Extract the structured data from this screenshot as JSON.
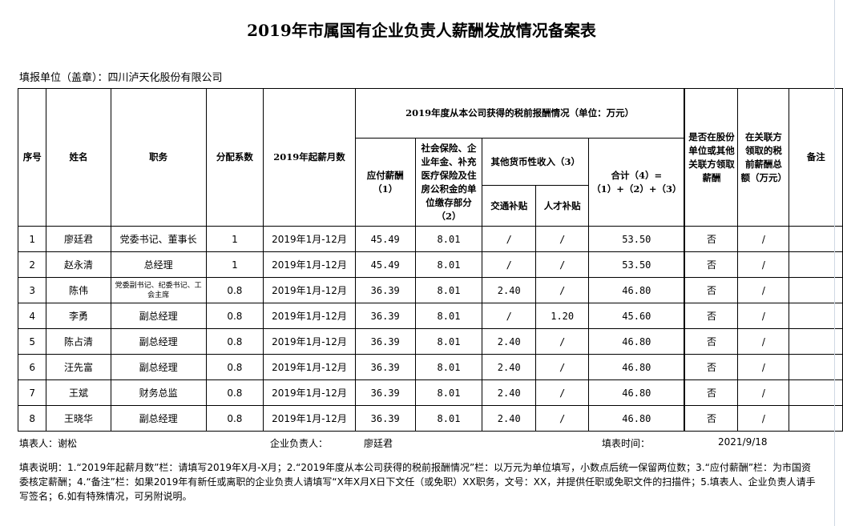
{
  "title": "2019年市属国有企业负责人薪酬发放情况备案表",
  "unit_label": "填报单位（盖章）：四川泸天化股份有限公司",
  "headers": {
    "seq": "序号",
    "name": "姓名",
    "position": "职务",
    "coef": "分配系数",
    "months": "2019年起薪月数",
    "group": "2019年度从本公司获得的税前报酬情况（单位：万元）",
    "salary": "应付薪酬（1）",
    "insurance": "社会保险、企业年金、补充医疗保险及住房公积金的单位缴存部分（2）",
    "other": "其他货币性收入（3）",
    "transport": "交通补贴",
    "talent": "人才补贴",
    "total": "合计（4）=（1）+（2）+（3）",
    "related": "是否在股份单位或其他关联方领取薪酬",
    "related_amount": "在关联方领取的税前薪酬总额（万元）",
    "remark": "备注"
  },
  "rows": [
    [
      "1",
      "廖廷君",
      "党委书记、董事长",
      "1",
      "2019年1月-12月",
      "45.49",
      "8.01",
      "/",
      "/",
      "53.50",
      "否",
      "/",
      ""
    ],
    [
      "2",
      "赵永清",
      "总经理",
      "1",
      "2019年1月-12月",
      "45.49",
      "8.01",
      "/",
      "/",
      "53.50",
      "否",
      "/",
      ""
    ],
    [
      "3",
      "陈伟",
      "党委副书记、纪委书记、工会主席",
      "0.8",
      "2019年1月-12月",
      "36.39",
      "8.01",
      "2.40",
      "/",
      "46.80",
      "否",
      "/",
      ""
    ],
    [
      "4",
      "李勇",
      "副总经理",
      "0.8",
      "2019年1月-12月",
      "36.39",
      "8.01",
      "/",
      "1.20",
      "45.60",
      "否",
      "/",
      ""
    ],
    [
      "5",
      "陈占清",
      "副总经理",
      "0.8",
      "2019年1月-12月",
      "36.39",
      "8.01",
      "2.40",
      "/",
      "46.80",
      "否",
      "/",
      ""
    ],
    [
      "6",
      "汪先富",
      "副总经理",
      "0.8",
      "2019年1月-12月",
      "36.39",
      "8.01",
      "2.40",
      "/",
      "46.80",
      "否",
      "/",
      ""
    ],
    [
      "7",
      "王斌",
      "财务总监",
      "0.8",
      "2019年1月-12月",
      "36.39",
      "8.01",
      "2.40",
      "/",
      "46.80",
      "否",
      "/",
      ""
    ],
    [
      "8",
      "王晓华",
      "副总经理",
      "0.8",
      "2019年1月-12月",
      "36.39",
      "8.01",
      "2.40",
      "/",
      "46.80",
      "否",
      "/",
      ""
    ]
  ],
  "footer": {
    "filler": "填表人：谢松",
    "leader_label": "企业负责人：",
    "leader": "廖廷君",
    "date_label": "填表时间：",
    "date": "2021/9/18"
  },
  "notes": "填表说明：1.“2019年起薪月数”栏：请填写2019年X月-X月；2.“2019年度从本公司获得的税前报酬情况”栏：以万元为单位填写，小数点后统一保留两位数；3.“应付薪酬”栏：为市国资委核定薪酬；4.“备注”栏：如果2019年有新任或离职的企业负责人请填写“X年X月X日下文任（或免职）XX职务，文号：XX，并提供任职或免职文件的扫描件；5.填表人、企业负责人请手写签名；6.如有特殊情况，可另附说明。"
}
